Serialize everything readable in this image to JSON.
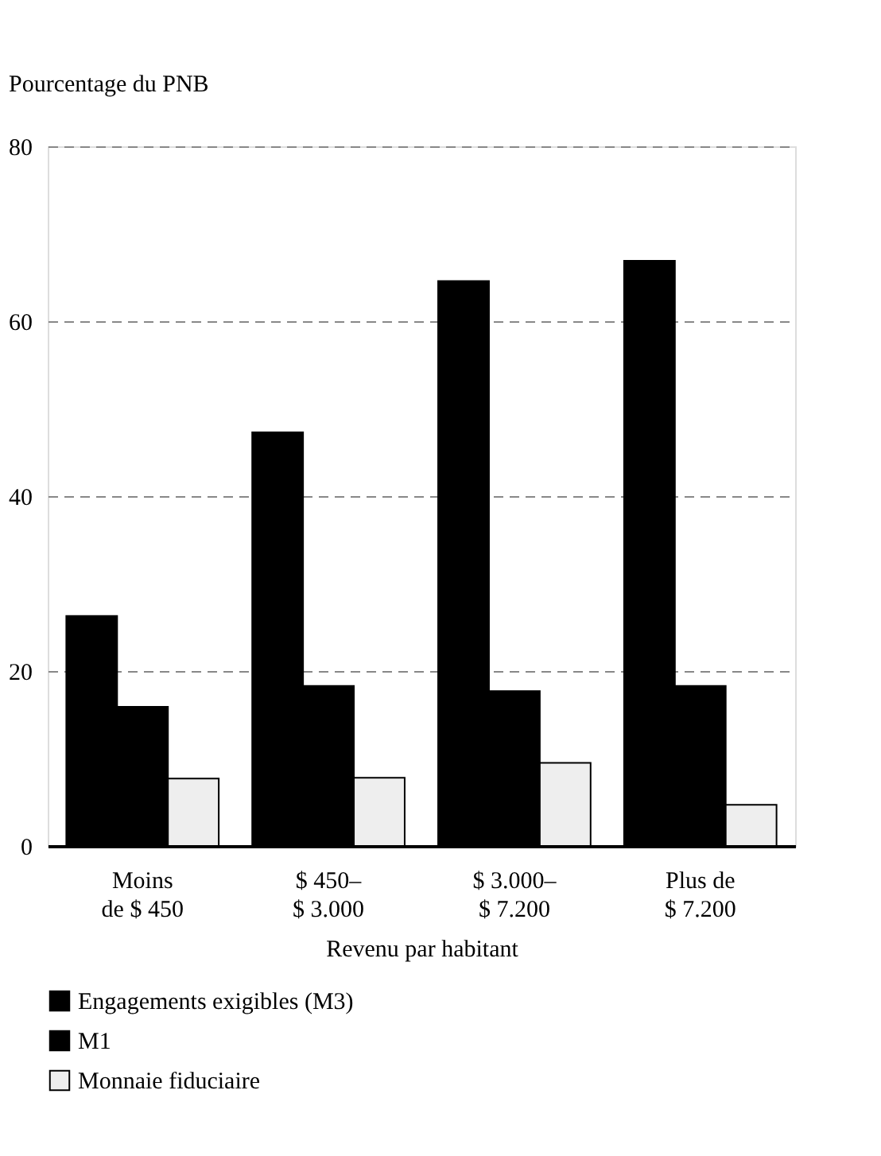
{
  "chart_data": {
    "type": "bar",
    "ylabel": "Pourcentage du PNB",
    "xlabel": "Revenu par habitant",
    "categories": [
      "Moins\nde $ 450",
      "$ 450–\n$ 3.000",
      "$ 3.000–\n$ 7.200",
      "Plus de\n$ 7.200"
    ],
    "series": [
      {
        "name": "Engagements exigibles (M3)",
        "color": "#000000",
        "values": [
          26.3,
          47.3,
          64.6,
          66.9
        ]
      },
      {
        "name": "M1",
        "color": "#000000",
        "values": [
          15.9,
          18.3,
          17.7,
          18.3
        ]
      },
      {
        "name": "Monnaie fiduciaire",
        "color": "#eeeeee",
        "values": [
          7.7,
          7.8,
          9.5,
          4.7
        ]
      }
    ],
    "ylim": [
      0,
      80
    ],
    "yticks": [
      0,
      20,
      40,
      60,
      80
    ],
    "grid": "y",
    "legend": "bottom"
  }
}
